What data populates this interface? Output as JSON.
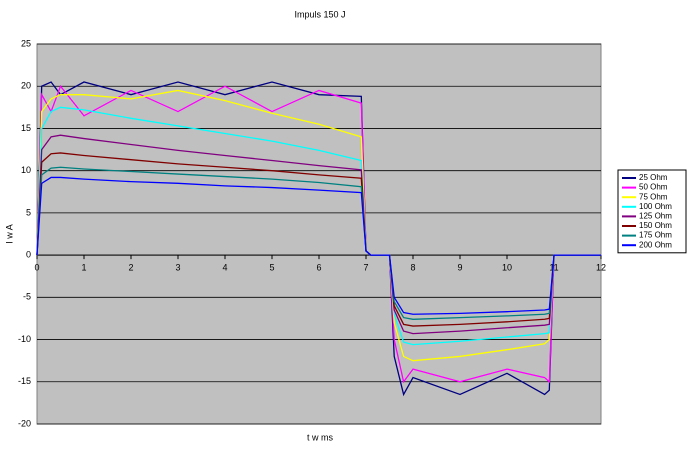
{
  "chart_data": {
    "type": "line",
    "title": "Impuls 150 J",
    "x_label": "t w ms",
    "y_label": "I w A",
    "x": [
      0,
      0.1,
      0.3,
      0.5,
      1,
      2,
      3,
      4,
      5,
      6,
      6.9,
      7.0,
      7.1,
      7.5,
      7.6,
      7.8,
      8,
      9,
      10,
      10.8,
      10.9,
      11,
      12
    ],
    "series": [
      {
        "name": "25 Ohm",
        "color": "#000080",
        "values": [
          0,
          20,
          20.5,
          19,
          20.5,
          19,
          20.5,
          19,
          20.5,
          19,
          18.8,
          0.5,
          0,
          0,
          -12,
          -16.5,
          -14.5,
          -16.5,
          -14,
          -16.5,
          -16,
          0,
          0
        ]
      },
      {
        "name": "50 Ohm",
        "color": "#ff00ff",
        "values": [
          0,
          19,
          17,
          20,
          16.5,
          19.5,
          17,
          20,
          17,
          19.5,
          18,
          0.5,
          0,
          0,
          -10,
          -15,
          -13.5,
          -15,
          -13.5,
          -14.5,
          -15,
          0,
          0
        ]
      },
      {
        "name": "75 Ohm",
        "color": "#ffff00",
        "values": [
          0,
          17,
          18.5,
          19,
          19,
          18.5,
          19.5,
          18.3,
          16.8,
          15.5,
          14,
          0.5,
          0,
          0,
          -8,
          -12,
          -12.5,
          -12,
          -11.2,
          -10.5,
          -10,
          0,
          0
        ]
      },
      {
        "name": "100 Ohm",
        "color": "#00ffff",
        "values": [
          0,
          15,
          17,
          17.5,
          17.2,
          16.2,
          15.3,
          14.4,
          13.5,
          12.4,
          11.2,
          0.5,
          0,
          0,
          -7,
          -10.3,
          -10.6,
          -10.2,
          -9.7,
          -9.3,
          -9.2,
          0,
          0
        ]
      },
      {
        "name": "125 Ohm",
        "color": "#800080",
        "values": [
          0,
          12.5,
          14,
          14.2,
          13.8,
          13.1,
          12.4,
          11.8,
          11.2,
          10.6,
          10.1,
          0.5,
          0,
          0,
          -6.5,
          -9,
          -9.3,
          -9,
          -8.6,
          -8.3,
          -8.2,
          0,
          0
        ]
      },
      {
        "name": "150 Ohm",
        "color": "#800000",
        "values": [
          0,
          11,
          12,
          12.1,
          11.8,
          11.3,
          10.8,
          10.4,
          10,
          9.5,
          9.1,
          0.5,
          0,
          0,
          -6,
          -8.2,
          -8.4,
          -8.2,
          -7.9,
          -7.6,
          -7.5,
          0,
          0
        ]
      },
      {
        "name": "175 Ohm",
        "color": "#008080",
        "values": [
          0,
          9.5,
          10.3,
          10.4,
          10.2,
          9.9,
          9.6,
          9.3,
          9,
          8.6,
          8.1,
          0.5,
          0,
          0,
          -5.5,
          -7.4,
          -7.6,
          -7.4,
          -7.2,
          -7.0,
          -6.9,
          0,
          0
        ]
      },
      {
        "name": "200 Ohm",
        "color": "#0000ff",
        "values": [
          0,
          8.5,
          9.2,
          9.2,
          9.0,
          8.7,
          8.5,
          8.2,
          8.0,
          7.7,
          7.4,
          0.5,
          0,
          0,
          -5,
          -6.8,
          -7.0,
          -6.9,
          -6.7,
          -6.5,
          -6.4,
          0,
          0
        ]
      }
    ],
    "xlim": [
      0,
      12
    ],
    "xticks": [
      0,
      1,
      2,
      3,
      4,
      5,
      6,
      7,
      8,
      9,
      10,
      11,
      12
    ],
    "ylim": [
      -20,
      25
    ],
    "yticks": [
      -20,
      -15,
      -10,
      -5,
      0,
      5,
      10,
      15,
      20,
      25
    ],
    "grid": true,
    "legend": "right"
  }
}
